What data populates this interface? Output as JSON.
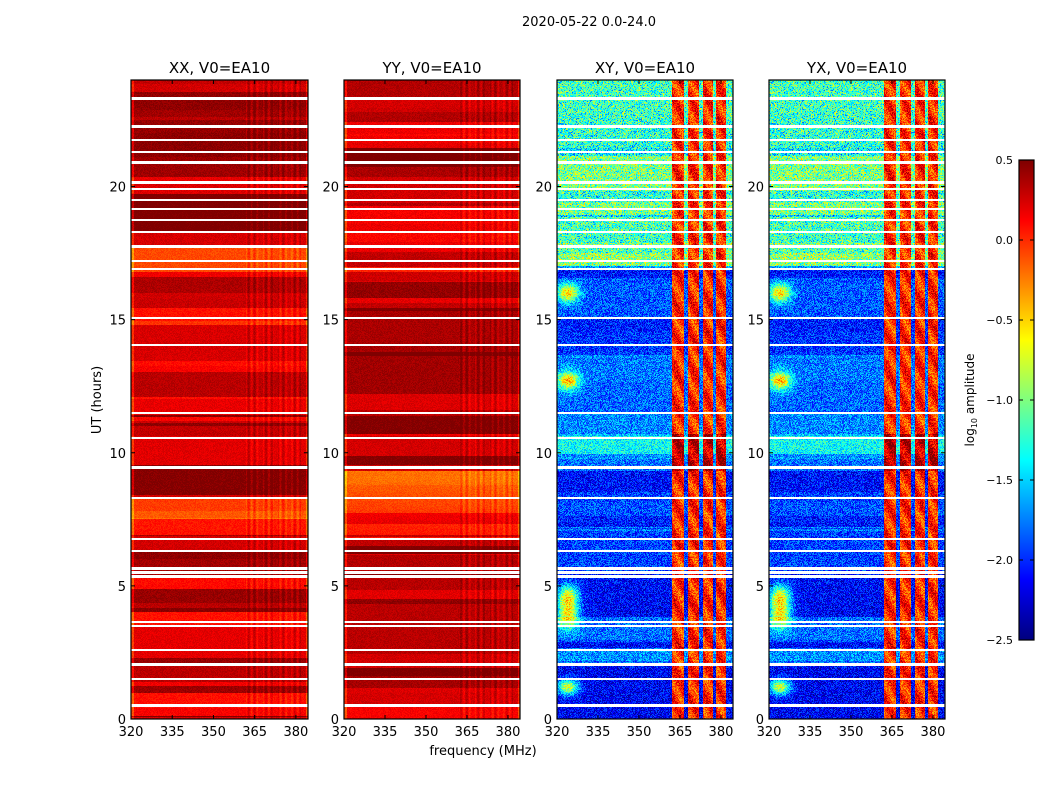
{
  "chart_data": {
    "type": "heatmap",
    "title": "2020-05-22 0.0-24.0",
    "xlabel": "frequency (MHz)",
    "ylabel": "UT (hours)",
    "xlim": [
      320,
      384.4
    ],
    "ylim": [
      0,
      24
    ],
    "xticks": [
      "320",
      "335",
      "350",
      "365",
      "380"
    ],
    "xtick_values": [
      320,
      335,
      350,
      365,
      380
    ],
    "yticks": [
      "0",
      "5",
      "10",
      "15",
      "20"
    ],
    "ytick_values": [
      0,
      5,
      10,
      15,
      20
    ],
    "colormap": "jet",
    "panels": [
      {
        "title": "XX, V0=EA10",
        "pol": "XX",
        "typical_log10_amplitude": 0.3,
        "show_yticks": true
      },
      {
        "title": "YY, V0=EA10",
        "pol": "YY",
        "typical_log10_amplitude": 0.35,
        "show_yticks": true
      },
      {
        "title": "XY, V0=EA10",
        "pol": "XY",
        "typical_log10_amplitude": -1.9,
        "show_yticks": true
      },
      {
        "title": "YX, V0=EA10",
        "pol": "YX",
        "typical_log10_amplitude": -1.9,
        "show_yticks": true
      }
    ],
    "rfi_bands_mhz": [
      [
        362,
        366.5
      ],
      [
        368,
        372
      ],
      [
        373.5,
        377
      ],
      [
        378,
        382
      ]
    ],
    "flagged_ut_hours": [
      0.5,
      1.5,
      2.05,
      2.6,
      3.5,
      3.65,
      5.35,
      5.5,
      5.65,
      6.3,
      6.75,
      8.3,
      9.45,
      10.55,
      11.5,
      14.05,
      15.05,
      16.9,
      17.2,
      17.75,
      18.3,
      18.75,
      19.15,
      19.5,
      19.9,
      20.15,
      20.9,
      21.3,
      21.75,
      22.25,
      23.3
    ],
    "colorbar": {
      "label_main": "log",
      "label_sub": "10",
      "label_rest": " amplitude",
      "range": [
        -2.5,
        0.5
      ],
      "ticks": [
        "0.5",
        "0.0",
        "−0.5",
        "−1.0",
        "−1.5",
        "−2.0",
        "−2.5"
      ],
      "tick_values": [
        0.5,
        0.0,
        -0.5,
        -1.0,
        -1.5,
        -2.0,
        -2.5
      ]
    }
  }
}
